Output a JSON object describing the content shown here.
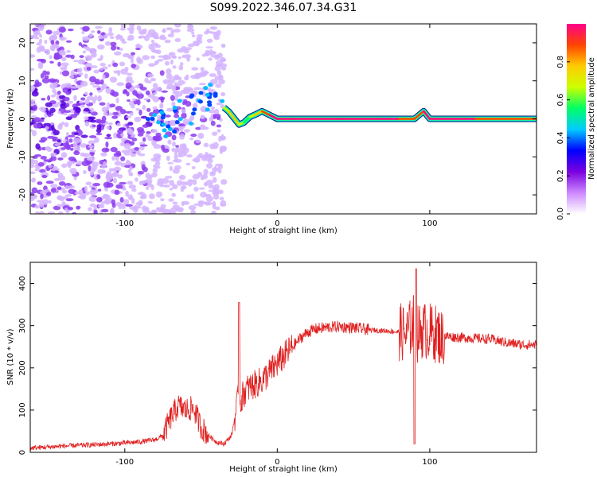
{
  "title": "S099.2022.346.07.34.G31",
  "chart_data": [
    {
      "type": "heatmap",
      "xlabel": "Height of straight line (km)",
      "ylabel": "Frequency (Hz)",
      "xlim": [
        -162,
        170
      ],
      "ylim": [
        -25,
        25
      ],
      "xticks": [
        -100,
        0,
        100
      ],
      "yticks": [
        -20,
        -10,
        0,
        10,
        20
      ],
      "colorbar": {
        "label": "Normalized spectral amplitude",
        "range": [
          0,
          1
        ],
        "ticks": [
          0.0,
          0.2,
          0.4,
          0.6,
          0.8
        ],
        "colormap": [
          "#ffffff",
          "#cc88ff",
          "#7a00e0",
          "#0000ff",
          "#00ccff",
          "#00ff66",
          "#ccff00",
          "#ffcc00",
          "#ff4400",
          "#ff0088"
        ]
      },
      "noise_region": {
        "x_range": [
          -162,
          -35
        ],
        "description_color": "#7a00e0"
      },
      "dominant_frequency_track": {
        "height_km": [
          -35,
          -32,
          -28,
          -25,
          -22,
          -18,
          -15,
          -10,
          -5,
          0,
          10,
          40,
          70,
          80,
          90,
          93,
          96,
          100,
          130,
          170
        ],
        "frequency_hz": [
          3,
          2,
          0,
          -1.5,
          -1,
          0.5,
          1,
          2,
          1,
          0,
          0,
          0,
          0,
          0,
          0,
          1,
          2,
          0,
          0,
          0
        ],
        "amplitude": [
          0.6,
          0.7,
          0.8,
          0.7,
          0.6,
          0.5,
          0.7,
          0.8,
          0.9,
          0.95,
          0.98,
          0.98,
          0.97,
          0.9,
          0.85,
          0.8,
          0.9,
          0.95,
          0.9,
          0.7
        ]
      }
    },
    {
      "type": "line",
      "xlabel": "Height of straight line (km)",
      "ylabel": "SNR (10 * v/v)",
      "xlim": [
        -162,
        170
      ],
      "ylim": [
        0,
        450
      ],
      "xticks": [
        -100,
        0,
        100
      ],
      "yticks": [
        0,
        100,
        200,
        300,
        400
      ],
      "color": "#e02020",
      "series": [
        {
          "x": [
            -162,
            -140,
            -120,
            -100,
            -90,
            -80,
            -75,
            -70,
            -65,
            -60,
            -55,
            -50,
            -45,
            -40,
            -35,
            -30,
            -28,
            -26,
            -25,
            -24,
            -22,
            -20,
            -15,
            -10,
            -5,
            0,
            5,
            10,
            15,
            20,
            25,
            30,
            40,
            50,
            60,
            70,
            80,
            85,
            88,
            90,
            92,
            95,
            100,
            105,
            108,
            110,
            120,
            130,
            140,
            150,
            160,
            170
          ],
          "y": [
            10,
            15,
            18,
            22,
            25,
            30,
            40,
            80,
            110,
            100,
            105,
            60,
            40,
            25,
            20,
            40,
            80,
            120,
            150,
            120,
            140,
            150,
            160,
            170,
            190,
            210,
            230,
            250,
            270,
            285,
            292,
            295,
            298,
            295,
            290,
            288,
            285,
            280,
            300,
            310,
            280,
            290,
            285,
            280,
            270,
            275,
            272,
            270,
            268,
            260,
            255,
            255
          ]
        }
      ]
    }
  ]
}
